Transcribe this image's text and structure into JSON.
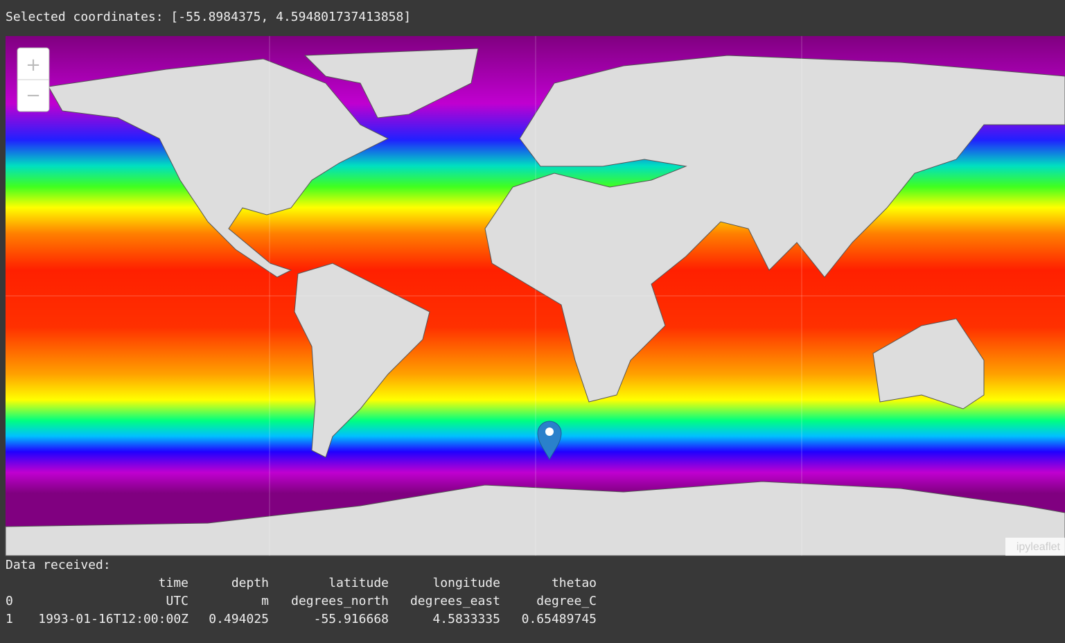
{
  "header": {
    "text": "Selected coordinates: [-55.8984375, 4.594801737413858]"
  },
  "map": {
    "zoom_in": "+",
    "zoom_out": "−",
    "attribution": "ipyleaflet"
  },
  "output": {
    "label": "Data received:",
    "table": {
      "columns": [
        "time",
        "depth",
        "latitude",
        "longitude",
        "thetao"
      ],
      "rows": [
        {
          "index": "0",
          "cells": [
            "UTC",
            "m",
            "degrees_north",
            "degrees_east",
            "degree_C"
          ]
        },
        {
          "index": "1",
          "cells": [
            "1993-01-16T12:00:00Z",
            "0.494025",
            "-55.916668",
            "4.5833335",
            "0.65489745"
          ]
        }
      ]
    }
  }
}
